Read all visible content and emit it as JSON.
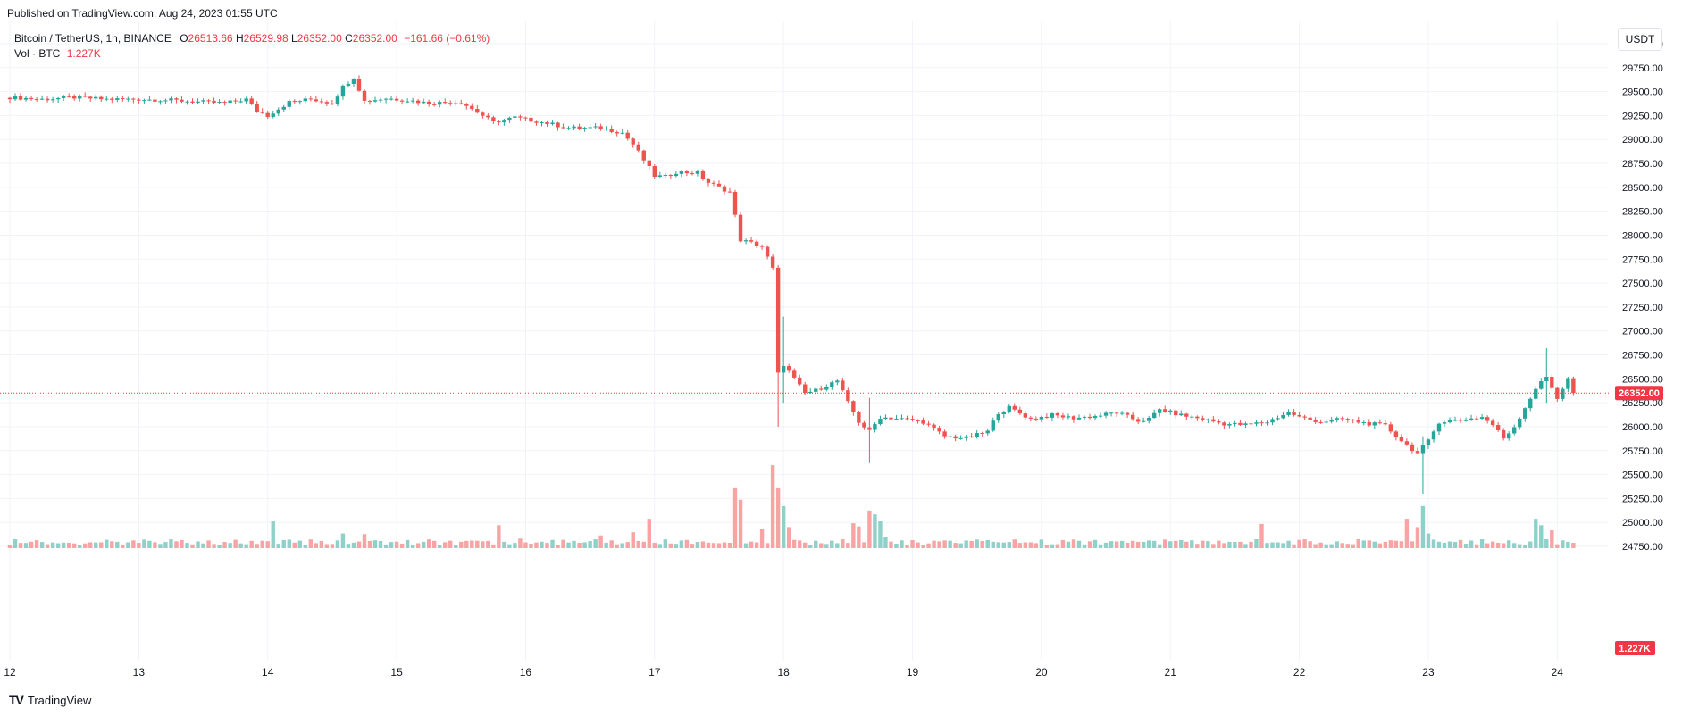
{
  "header": {
    "published": "Published on TradingView.com, Aug 24, 2023 01:55 UTC"
  },
  "legend": {
    "symbol": "Bitcoin / TetherUS, 1h, BINANCE",
    "o_label": "O",
    "o_value": "26513.66",
    "h_label": "H",
    "h_value": "26529.98",
    "l_label": "L",
    "l_value": "26352.00",
    "c_label": "C",
    "c_value": "26352.00",
    "change": "−161.66 (−0.61%)",
    "vol_label": "Vol · BTC",
    "vol_value": "1.227K"
  },
  "unit_button": "USDT",
  "price_badge": "26352.00",
  "volume_badge": "1.227K",
  "footer": {
    "brand": "TradingView",
    "logo": "TV"
  },
  "colors": {
    "up": "#26a69a",
    "down": "#ef5350",
    "up_vol": "#8fd1c9",
    "down_vol": "#f6a4a4",
    "grid": "#f0f3fa",
    "badge": "#f23645"
  },
  "chart_data": {
    "type": "candlestick",
    "title": "Bitcoin / TetherUS, 1h, BINANCE",
    "ylim": [
      24750,
      30000
    ],
    "price_ticks": [
      24750,
      25000,
      25250,
      25500,
      25750,
      26000,
      26250,
      26500,
      26750,
      27000,
      27250,
      27500,
      27750,
      28000,
      28250,
      28500,
      28750,
      29000,
      29250,
      29500,
      29750,
      30000
    ],
    "price_tick_labels": [
      "24750.00",
      "25000.00",
      "25250.00",
      "25500.00",
      "25750.00",
      "26000.00",
      "26250.00",
      "26500.00",
      "26750.00",
      "27000.00",
      "27250.00",
      "27500.00",
      "27750.00",
      "28000.00",
      "28250.00",
      "28500.00",
      "28750.00",
      "29000.00",
      "29250.00",
      "29500.00",
      "29750.00",
      "30000.00"
    ],
    "x_ticks": [
      {
        "label": "12",
        "hour": 0
      },
      {
        "label": "13",
        "hour": 24
      },
      {
        "label": "14",
        "hour": 48
      },
      {
        "label": "15",
        "hour": 72
      },
      {
        "label": "16",
        "hour": 96
      },
      {
        "label": "17",
        "hour": 120
      },
      {
        "label": "18",
        "hour": 144
      },
      {
        "label": "19",
        "hour": 168
      },
      {
        "label": "20",
        "hour": 192
      },
      {
        "label": "21",
        "hour": 216
      },
      {
        "label": "22",
        "hour": 240
      },
      {
        "label": "23",
        "hour": 264
      },
      {
        "label": "24",
        "hour": 288
      }
    ],
    "last_price": 26352.0,
    "close_anchors": [
      [
        0,
        29440
      ],
      [
        6,
        29420
      ],
      [
        12,
        29440
      ],
      [
        18,
        29420
      ],
      [
        24,
        29420
      ],
      [
        30,
        29410
      ],
      [
        36,
        29390
      ],
      [
        40,
        29380
      ],
      [
        44,
        29420
      ],
      [
        46,
        29300
      ],
      [
        48,
        29250
      ],
      [
        52,
        29390
      ],
      [
        56,
        29420
      ],
      [
        60,
        29380
      ],
      [
        62,
        29550
      ],
      [
        64,
        29650
      ],
      [
        66,
        29400
      ],
      [
        70,
        29430
      ],
      [
        74,
        29410
      ],
      [
        78,
        29380
      ],
      [
        84,
        29390
      ],
      [
        86,
        29320
      ],
      [
        90,
        29180
      ],
      [
        94,
        29230
      ],
      [
        100,
        29170
      ],
      [
        104,
        29120
      ],
      [
        110,
        29120
      ],
      [
        114,
        29070
      ],
      [
        116,
        28950
      ],
      [
        120,
        28620
      ],
      [
        122,
        28610
      ],
      [
        124,
        28660
      ],
      [
        128,
        28650
      ],
      [
        130,
        28550
      ],
      [
        134,
        28450
      ],
      [
        136,
        27950
      ],
      [
        138,
        27920
      ],
      [
        140,
        27880
      ],
      [
        142,
        27650
      ],
      [
        143,
        26550
      ],
      [
        144,
        26650
      ],
      [
        146,
        26500
      ],
      [
        148,
        26350
      ],
      [
        150,
        26380
      ],
      [
        154,
        26480
      ],
      [
        156,
        26250
      ],
      [
        158,
        26050
      ],
      [
        160,
        25950
      ],
      [
        162,
        26100
      ],
      [
        166,
        26080
      ],
      [
        170,
        26050
      ],
      [
        174,
        25900
      ],
      [
        178,
        25880
      ],
      [
        182,
        25950
      ],
      [
        184,
        26150
      ],
      [
        186,
        26200
      ],
      [
        190,
        26080
      ],
      [
        194,
        26120
      ],
      [
        198,
        26090
      ],
      [
        202,
        26110
      ],
      [
        206,
        26150
      ],
      [
        210,
        26060
      ],
      [
        212,
        26080
      ],
      [
        214,
        26180
      ],
      [
        218,
        26120
      ],
      [
        222,
        26080
      ],
      [
        226,
        26030
      ],
      [
        230,
        26020
      ],
      [
        234,
        26050
      ],
      [
        236,
        26100
      ],
      [
        238,
        26150
      ],
      [
        240,
        26100
      ],
      [
        244,
        26050
      ],
      [
        248,
        26080
      ],
      [
        252,
        26040
      ],
      [
        256,
        26010
      ],
      [
        258,
        25900
      ],
      [
        262,
        25720
      ],
      [
        264,
        25850
      ],
      [
        266,
        26050
      ],
      [
        270,
        26070
      ],
      [
        274,
        26100
      ],
      [
        276,
        26020
      ],
      [
        278,
        25880
      ],
      [
        280,
        26000
      ],
      [
        282,
        26200
      ],
      [
        284,
        26400
      ],
      [
        286,
        26520
      ],
      [
        288,
        26300
      ],
      [
        290,
        26500
      ],
      [
        291,
        26352
      ]
    ],
    "extreme_wicks": [
      {
        "hour": 143,
        "high": 27000,
        "low": 26000
      },
      {
        "hour": 144,
        "high": 27150,
        "low": 26250
      },
      {
        "hour": 160,
        "high": 26300,
        "low": 25620
      },
      {
        "hour": 263,
        "high": 25900,
        "low": 25300
      },
      {
        "hour": 286,
        "high": 26820,
        "low": 26250
      }
    ],
    "volume_ylim": [
      0,
      7000
    ],
    "volume_spikes": [
      {
        "hour": 49,
        "value": 2100
      },
      {
        "hour": 62,
        "value": 1150
      },
      {
        "hour": 66,
        "value": 1100
      },
      {
        "hour": 91,
        "value": 1800
      },
      {
        "hour": 95,
        "value": 750
      },
      {
        "hour": 110,
        "value": 1000
      },
      {
        "hour": 116,
        "value": 1250
      },
      {
        "hour": 119,
        "value": 2300
      },
      {
        "hour": 135,
        "value": 4700
      },
      {
        "hour": 136,
        "value": 3800
      },
      {
        "hour": 140,
        "value": 1500
      },
      {
        "hour": 142,
        "value": 6500
      },
      {
        "hour": 143,
        "value": 4700
      },
      {
        "hour": 144,
        "value": 3300
      },
      {
        "hour": 145,
        "value": 1650
      },
      {
        "hour": 157,
        "value": 1950
      },
      {
        "hour": 158,
        "value": 1700
      },
      {
        "hour": 160,
        "value": 2950
      },
      {
        "hour": 161,
        "value": 2650
      },
      {
        "hour": 162,
        "value": 2100
      },
      {
        "hour": 163,
        "value": 850
      },
      {
        "hour": 178,
        "value": 600
      },
      {
        "hour": 233,
        "value": 1900
      },
      {
        "hour": 262,
        "value": 1650
      },
      {
        "hour": 260,
        "value": 2300
      },
      {
        "hour": 263,
        "value": 3300
      },
      {
        "hour": 264,
        "value": 1150
      },
      {
        "hour": 284,
        "value": 2300
      },
      {
        "hour": 285,
        "value": 1800
      },
      {
        "hour": 287,
        "value": 1400
      }
    ]
  }
}
